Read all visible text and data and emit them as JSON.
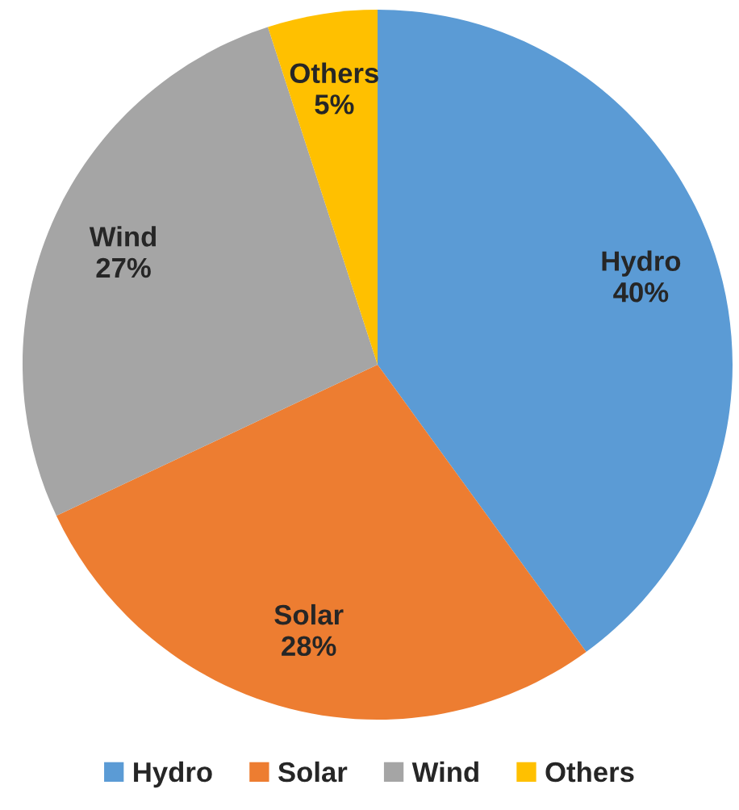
{
  "chart_data": {
    "type": "pie",
    "categories": [
      "Hydro",
      "Solar",
      "Wind",
      "Others"
    ],
    "values": [
      40,
      28,
      27,
      5
    ],
    "colors": [
      "#5b9bd5",
      "#ed7d31",
      "#a5a5a5",
      "#ffc000"
    ],
    "value_labels": [
      "40%",
      "28%",
      "27%",
      "5%"
    ],
    "legend": "bottom"
  }
}
